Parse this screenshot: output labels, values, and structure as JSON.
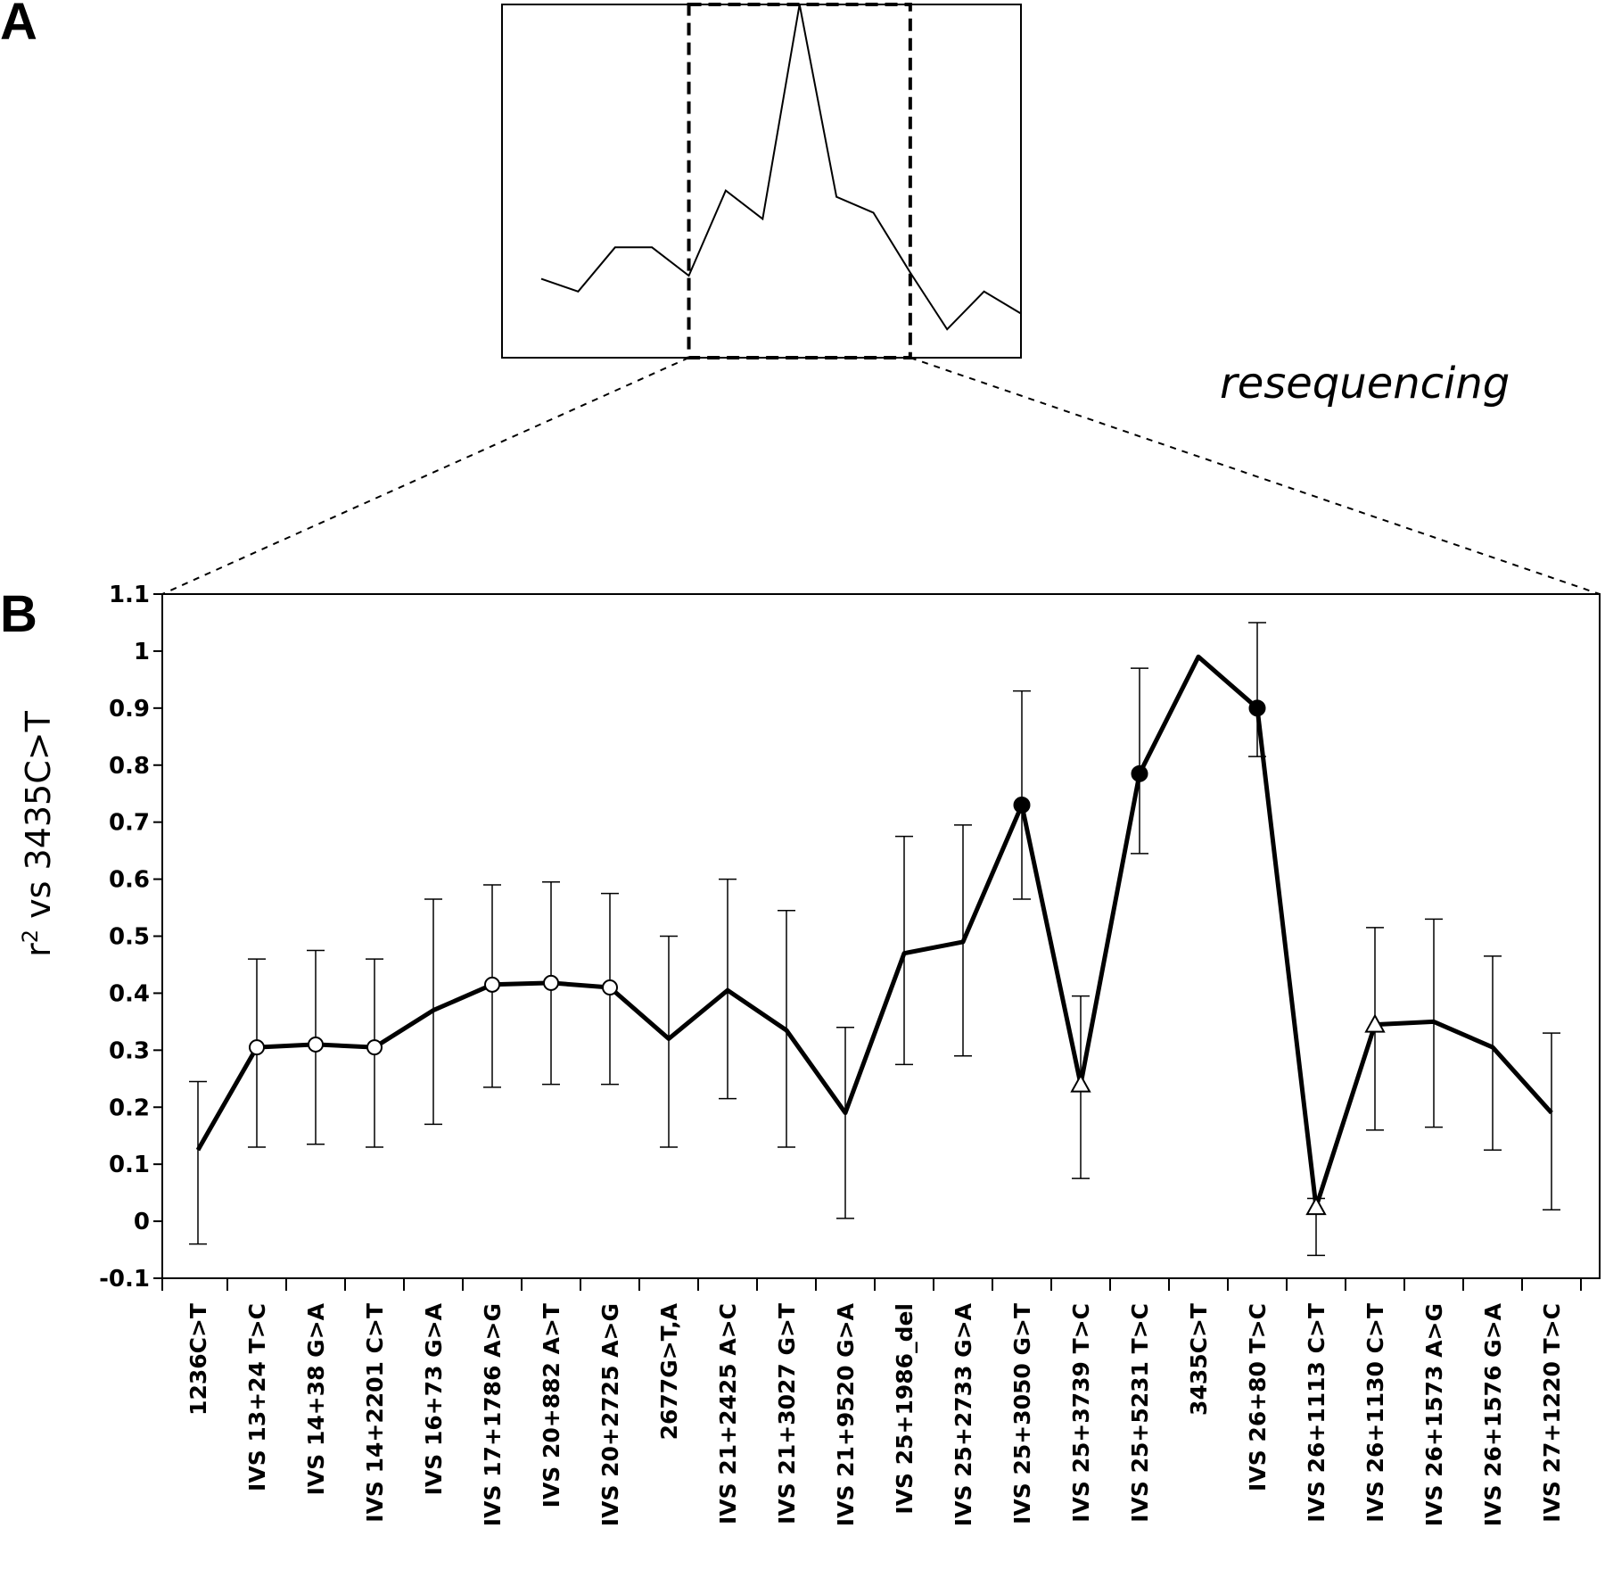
{
  "panels": {
    "a_label": "A",
    "b_label": "B"
  },
  "annotation": "resequencing",
  "colors": {
    "line": "#000000",
    "background": "#ffffff"
  },
  "chart_data": [
    {
      "panel": "A",
      "type": "line",
      "title": "",
      "xlabel": "",
      "ylabel": "",
      "axes_ticks": "none",
      "values": [
        0.13,
        0.09,
        0.23,
        0.23,
        0.14,
        0.41,
        0.32,
        1.0,
        0.39,
        0.34,
        0.15,
        -0.03,
        0.09,
        0.02
      ],
      "zoom_region_index_range": [
        4,
        10
      ],
      "zoom_box_style": "dashed"
    },
    {
      "panel": "B",
      "type": "line",
      "title": "",
      "xlabel": "",
      "ylabel": "r² vs 3435C>T",
      "ylabel_parts": {
        "r": "r",
        "sup": "2",
        "rest": " vs 3435C>T"
      },
      "ylim": [
        -0.1,
        1.1
      ],
      "yticks": [
        "-0.1",
        "0",
        "0.1",
        "0.2",
        "0.3",
        "0.4",
        "0.5",
        "0.6",
        "0.7",
        "0.8",
        "0.9",
        "1",
        "1.1"
      ],
      "grid": false,
      "categories": [
        "1236C>T",
        "IVS 13+24 T>C",
        "IVS 14+38 G>A",
        "IVS 14+2201 C>T",
        "IVS 16+73 G>A",
        "IVS 17+1786 A>G",
        "IVS 20+882 A>T",
        "IVS 20+2725 A>G",
        "2677G>T,A",
        "IVS 21+2425 A>C",
        "IVS 21+3027 G>T",
        "IVS 21+9520 G>A",
        "IVS 25+1986_del",
        "IVS 25+2733 G>A",
        "IVS 25+3050 G>T",
        "IVS 25+3739 T>C",
        "IVS 25+5231 T>C",
        "3435C>T",
        "IVS 26+80 T>C",
        "IVS 26+1113 C>T",
        "IVS 26+1130 C>T",
        "IVS 26+1573 A>G",
        "IVS 26+1576 G>A",
        "IVS 27+1220 T>C"
      ],
      "values": [
        0.125,
        0.305,
        0.31,
        0.305,
        0.37,
        0.415,
        0.418,
        0.41,
        0.32,
        0.405,
        0.335,
        0.19,
        0.47,
        0.49,
        0.73,
        0.24,
        0.785,
        0.99,
        0.9,
        0.025,
        0.345,
        0.35,
        0.305,
        0.19
      ],
      "error_low": [
        -0.04,
        0.13,
        0.135,
        0.13,
        0.17,
        0.235,
        0.24,
        0.24,
        0.13,
        0.215,
        0.13,
        0.005,
        0.275,
        0.29,
        0.565,
        0.075,
        0.645,
        null,
        0.815,
        -0.06,
        0.16,
        0.165,
        0.125,
        0.02
      ],
      "error_high": [
        0.245,
        0.46,
        0.475,
        0.46,
        0.565,
        0.59,
        0.595,
        0.575,
        0.5,
        0.6,
        0.545,
        0.34,
        0.675,
        0.695,
        0.93,
        0.395,
        0.97,
        null,
        1.05,
        0.04,
        0.515,
        0.53,
        0.465,
        0.33
      ],
      "markers": [
        "none",
        "circle-open",
        "circle-open",
        "circle-open",
        "none",
        "circle-open",
        "circle-open",
        "circle-open",
        "none",
        "none",
        "none",
        "none",
        "none",
        "none",
        "circle-filled",
        "triangle-open",
        "circle-filled",
        "none",
        "circle-filled",
        "triangle-open",
        "triangle-open",
        "none",
        "none",
        "none"
      ]
    }
  ]
}
